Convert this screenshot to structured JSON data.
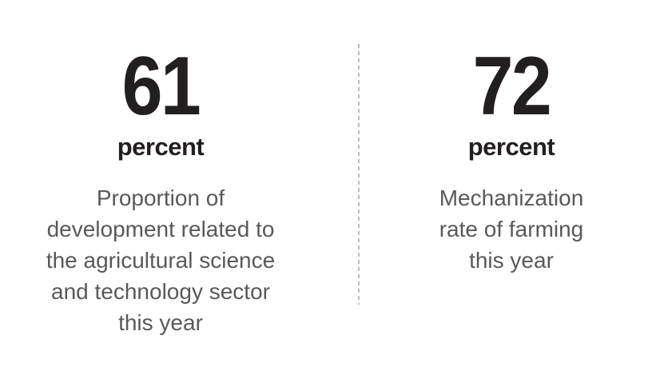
{
  "colors": {
    "number_text": "#231f20",
    "description_text": "#58595b",
    "divider": "#bcbcbc",
    "background": "#ffffff"
  },
  "divider": {
    "style": "dashed-vertical"
  },
  "stats": [
    {
      "value": "61",
      "unit": "percent",
      "description": "Proportion of\ndevelopment related to\nthe agricultural science\nand technology sector\nthis year"
    },
    {
      "value": "72",
      "unit": "percent",
      "description": "Mechanization\nrate of farming\nthis year"
    }
  ],
  "chart_data": {
    "type": "table",
    "title": "",
    "categories": [
      "Proportion of development related to the agricultural science and technology sector this year",
      "Mechanization rate of farming this year"
    ],
    "values": [
      61,
      72
    ],
    "unit": "percent",
    "legend_position": "none",
    "grid": false
  }
}
